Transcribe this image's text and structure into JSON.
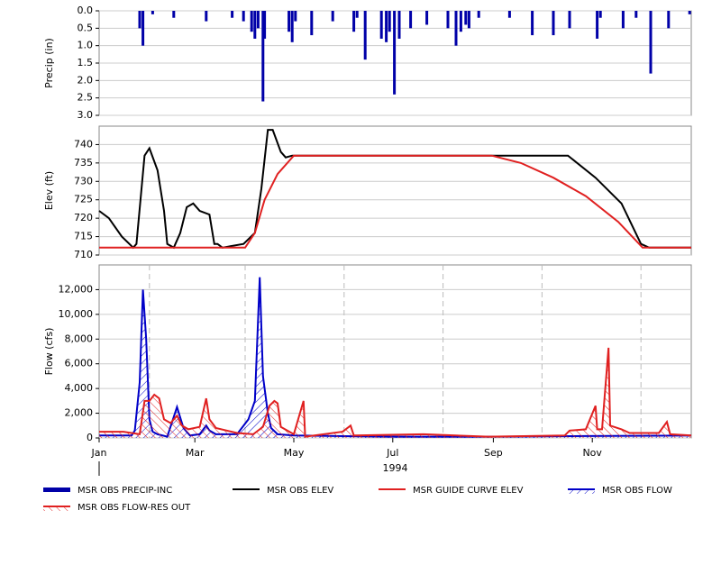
{
  "chart_data": [
    {
      "type": "bar",
      "ylabel": "Precip (in)",
      "xlim": [
        0,
        365
      ],
      "ylim": [
        0,
        3
      ],
      "y_inverted": true,
      "grid": true,
      "yticks": [
        {
          "value": 0,
          "label": "0.0"
        },
        {
          "value": 0.5,
          "label": "0.5"
        },
        {
          "value": 1,
          "label": "1.0"
        },
        {
          "value": 1.5,
          "label": "1.5"
        },
        {
          "value": 2,
          "label": "2.0"
        },
        {
          "value": 2.5,
          "label": "2.5"
        },
        {
          "value": 3,
          "label": "3.0"
        }
      ],
      "series": [
        {
          "name": "MSR OBS PRECIP-INC",
          "color": "#0000a8",
          "x": [
            25,
            27,
            33,
            46,
            66,
            82,
            89,
            94,
            96,
            98,
            101,
            102,
            117,
            119,
            121,
            131,
            144,
            157,
            159,
            164,
            174,
            177,
            179,
            182,
            185,
            192,
            202,
            215,
            220,
            223,
            226,
            228,
            234,
            253,
            267,
            280,
            290,
            307,
            309,
            323,
            331,
            340,
            351,
            364
          ],
          "values": [
            0.5,
            1.0,
            0.1,
            0.2,
            0.3,
            0.2,
            0.3,
            0.6,
            0.8,
            0.5,
            2.6,
            0.8,
            0.6,
            0.9,
            0.3,
            0.7,
            0.3,
            0.6,
            0.2,
            1.4,
            0.8,
            0.9,
            0.6,
            2.4,
            0.8,
            0.5,
            0.4,
            0.5,
            1.0,
            0.6,
            0.4,
            0.5,
            0.2,
            0.2,
            0.7,
            0.7,
            0.5,
            0.8,
            0.2,
            0.5,
            0.2,
            1.8,
            0.5,
            0.1
          ]
        }
      ]
    },
    {
      "type": "line",
      "ylabel": "Elev (ft)",
      "xlim": [
        0,
        365
      ],
      "ylim": [
        710,
        745
      ],
      "grid": true,
      "yticks": [
        710,
        715,
        720,
        725,
        730,
        735,
        740
      ],
      "series": [
        {
          "name": "MSR OBS ELEV",
          "color": "#000000",
          "x": [
            0,
            6,
            14,
            21,
            23,
            28,
            31,
            36,
            40,
            42,
            46,
            50,
            54,
            58,
            62,
            68,
            71,
            73,
            76,
            89,
            96,
            100,
            104,
            107,
            112,
            115,
            119,
            242,
            289,
            306,
            322,
            334,
            339,
            365
          ],
          "values": [
            722,
            720,
            715,
            712,
            713,
            737,
            739,
            733,
            722,
            713,
            712,
            716,
            723,
            724,
            722,
            721,
            713,
            713,
            712,
            713,
            716,
            728,
            744,
            744,
            738,
            736.5,
            737,
            737,
            737,
            731,
            724,
            713,
            712,
            712
          ]
        },
        {
          "name": "MSR GUIDE CURVE ELEV",
          "color": "#e02020",
          "x": [
            0,
            90,
            96,
            102,
            110,
            120,
            242,
            260,
            280,
            300,
            320,
            335,
            365
          ],
          "values": [
            712,
            712,
            716,
            725,
            732,
            737,
            737,
            735,
            731,
            726,
            719,
            712,
            712
          ]
        }
      ]
    },
    {
      "type": "line",
      "ylabel": "Flow (cfs)",
      "xlabel": "1994",
      "xlim": [
        0,
        365
      ],
      "ylim": [
        0,
        14000
      ],
      "grid": true,
      "xgrid_ticks": [
        31,
        90,
        151,
        212,
        273,
        334
      ],
      "xticks": [
        {
          "value": 0,
          "label": "Jan"
        },
        {
          "value": 59,
          "label": "Mar"
        },
        {
          "value": 120,
          "label": "May"
        },
        {
          "value": 181,
          "label": "Jul"
        },
        {
          "value": 243,
          "label": "Sep"
        },
        {
          "value": 304,
          "label": "Nov"
        }
      ],
      "yticks": [
        0,
        {
          "value": 2000,
          "label": "2,000"
        },
        {
          "value": 4000,
          "label": "4,000"
        },
        {
          "value": 6000,
          "label": "6,000"
        },
        {
          "value": 8000,
          "label": "8,000"
        },
        {
          "value": 10000,
          "label": "10,000"
        },
        {
          "value": 12000,
          "label": "12,000"
        }
      ],
      "series": [
        {
          "name": "MSR OBS FLOW",
          "color": "#0000c8",
          "hatched": true,
          "x": [
            0,
            20,
            22,
            25,
            27,
            29,
            31,
            33,
            36,
            42,
            48,
            52,
            56,
            62,
            66,
            68,
            72,
            85,
            92,
            96,
            99,
            101,
            104,
            106,
            110,
            120,
            180,
            240,
            300,
            365
          ],
          "values": [
            200,
            200,
            600,
            4500,
            12000,
            8000,
            1500,
            500,
            300,
            100,
            2500,
            800,
            200,
            300,
            1000,
            600,
            300,
            300,
            1500,
            3000,
            13000,
            5000,
            2000,
            800,
            300,
            200,
            100,
            100,
            150,
            200
          ]
        },
        {
          "name": "MSR OBS FLOW-RES OUT",
          "color": "#e02020",
          "hatched": true,
          "x": [
            0,
            15,
            25,
            28,
            31,
            34,
            37,
            40,
            44,
            48,
            51,
            55,
            62,
            66,
            68,
            72,
            85,
            95,
            101,
            105,
            108,
            110,
            112,
            120,
            126,
            127,
            150,
            155,
            157,
            200,
            240,
            287,
            290,
            300,
            306,
            307,
            310,
            314,
            315,
            322,
            327,
            345,
            350,
            352,
            365
          ],
          "values": [
            500,
            500,
            300,
            3000,
            3000,
            3500,
            3200,
            1500,
            1200,
            1800,
            1000,
            700,
            900,
            3200,
            1500,
            800,
            400,
            300,
            900,
            2600,
            3000,
            2800,
            900,
            300,
            3000,
            100,
            500,
            1000,
            200,
            300,
            100,
            200,
            600,
            700,
            2600,
            700,
            700,
            7300,
            1000,
            700,
            400,
            400,
            1300,
            300,
            200
          ]
        }
      ]
    }
  ]
}
